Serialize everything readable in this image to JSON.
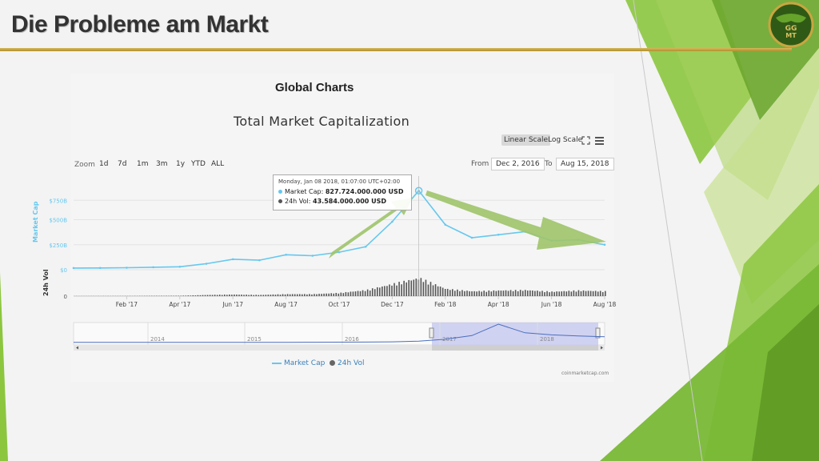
{
  "slide": {
    "title": "Die Probleme am Markt",
    "logo_text": [
      "GG",
      "MT"
    ]
  },
  "header": {
    "heading": "Global Charts",
    "chart_title": "Total Market Capitalization"
  },
  "controls": {
    "zoom_label": "Zoom",
    "zoom_buttons": [
      "1d",
      "7d",
      "1m",
      "3m",
      "1y",
      "YTD",
      "ALL"
    ],
    "scale_buttons": [
      "Linear Scale",
      "Log Scale"
    ],
    "active_scale": "Linear Scale",
    "from_label": "From",
    "from_value": "Dec 2, 2016",
    "to_label": "To",
    "to_value": "Aug 15, 2018",
    "fullscreen_icon": "expand-icon",
    "menu_icon": "menu-icon"
  },
  "tooltip": {
    "date": "Monday, Jan 08 2018, 01:07:00 UTC+02:00",
    "market_cap_label": "Market Cap:",
    "market_cap_value": "827.724.000.000 USD",
    "volume_label": "24h Vol:",
    "volume_value": "43.584.000.000 USD"
  },
  "legend": {
    "market_cap": "Market Cap",
    "volume": "24h Vol"
  },
  "credit": "coinmarketcap.com",
  "colors": {
    "market_cap": "#66c8ee",
    "volume": "#555555",
    "arrow": "#9ec46a",
    "navigator_select": "#c5c8ef",
    "gold": "#c9a640",
    "green": "#8cc63f"
  },
  "chart_data": {
    "type": "line",
    "x_unit": "month",
    "x": [
      "2016-12",
      "2017-01",
      "2017-02",
      "2017-03",
      "2017-04",
      "2017-05",
      "2017-06",
      "2017-07",
      "2017-08",
      "2017-09",
      "2017-10",
      "2017-11",
      "2017-12",
      "2018-01",
      "2018-02",
      "2018-03",
      "2018-04",
      "2018-05",
      "2018-06",
      "2018-07",
      "2018-08"
    ],
    "series": [
      {
        "name": "Market Cap",
        "axis": "Market Cap",
        "values": [
          17,
          18,
          20,
          25,
          30,
          60,
          105,
          95,
          150,
          140,
          175,
          230,
          480,
          790,
          450,
          320,
          350,
          380,
          290,
          300,
          250
        ]
      },
      {
        "name": "24h Vol",
        "axis": "24h Vol",
        "values": [
          0.3,
          0.4,
          0.5,
          0.8,
          1,
          3,
          4,
          3,
          5,
          5,
          8,
          15,
          30,
          45,
          18,
          12,
          14,
          15,
          11,
          14,
          12
        ]
      }
    ],
    "y_axis_market_cap": {
      "label": "Market Cap",
      "ticks": [
        "$0",
        "$250B",
        "$500B",
        "$750B"
      ],
      "ylim": [
        0,
        800
      ]
    },
    "y_axis_volume": {
      "label": "24h Vol",
      "ticks": [
        "0"
      ]
    },
    "x_ticks": [
      "Feb '17",
      "Apr '17",
      "Jun '17",
      "Aug '17",
      "Oct '17",
      "Dec '17",
      "Feb '18",
      "Apr '18",
      "Jun '18",
      "Aug '18"
    ],
    "navigator_years": [
      "2014",
      "2015",
      "2016",
      "2017",
      "2018"
    ],
    "navigator_values": [
      10,
      8,
      6,
      6,
      7,
      8,
      9,
      10,
      12,
      14,
      18,
      20,
      30,
      60,
      140,
      300,
      790,
      420,
      330,
      280,
      250
    ],
    "annotations": [
      "arrow-up-to-peak",
      "arrow-down-from-peak"
    ]
  }
}
